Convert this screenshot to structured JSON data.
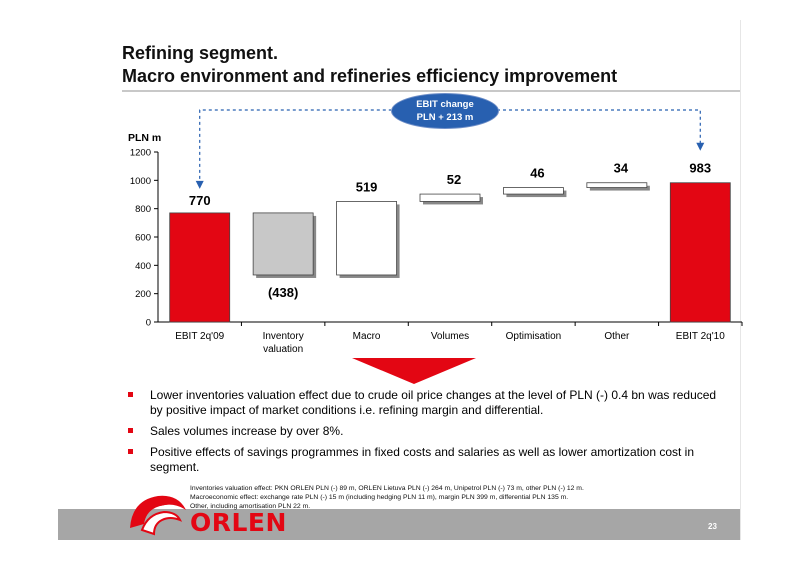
{
  "title": {
    "line1": "Refining segment.",
    "line2": "Macro environment and refineries efficiency improvement"
  },
  "callout": {
    "line1": "EBIT change",
    "line2": "PLN + 213 m"
  },
  "colors": {
    "accent_red": "#e30613",
    "grey_bar": "#c8c8c8",
    "callout_blue": "#2860b0",
    "footer_grey": "#a6a6a6"
  },
  "chart_data": {
    "type": "bar",
    "subtype": "waterfall",
    "ylabel": "PLN m",
    "ylim": [
      0,
      1200
    ],
    "yticks": [
      "0",
      "200",
      "400",
      "600",
      "800",
      "1000",
      "1200"
    ],
    "grid": false,
    "categories": [
      "EBIT 2q'09",
      "Inventory valuation",
      "Macro",
      "Volumes",
      "Optimisation",
      "Other",
      "EBIT 2q'10"
    ],
    "category_lines": [
      [
        "EBIT 2q'09"
      ],
      [
        "Inventory",
        "valuation"
      ],
      [
        "Macro"
      ],
      [
        "Volumes"
      ],
      [
        "Optimisation"
      ],
      [
        "Other"
      ],
      [
        "EBIT 2q'10"
      ]
    ],
    "bars": [
      {
        "category": "EBIT 2q'09",
        "kind": "total",
        "start": 0,
        "end": 770,
        "label": "770"
      },
      {
        "category": "Inventory valuation",
        "kind": "decrease",
        "start": 770,
        "end": 332,
        "label": "(438)"
      },
      {
        "category": "Macro",
        "kind": "increase",
        "start": 332,
        "end": 851,
        "label": "519"
      },
      {
        "category": "Volumes",
        "kind": "increase",
        "start": 851,
        "end": 903,
        "label": "52"
      },
      {
        "category": "Optimisation",
        "kind": "increase",
        "start": 903,
        "end": 949,
        "label": "46"
      },
      {
        "category": "Other",
        "kind": "increase",
        "start": 949,
        "end": 983,
        "label": "34"
      },
      {
        "category": "EBIT 2q'10",
        "kind": "total",
        "start": 0,
        "end": 983,
        "label": "983"
      }
    ]
  },
  "bullets": [
    "Lower inventories valuation effect due to crude oil price changes at the level of PLN (-) 0.4 bn was reduced by positive impact of market conditions i.e. refining margin and differential.",
    "Sales volumes increase by over 8%.",
    "Positive effects of savings programmes in fixed costs and salaries as well as lower amortization cost in segment."
  ],
  "footnotes": [
    "Inventories valuation effect: PKN ORLEN PLN (-) 89 m, ORLEN Lietuva PLN (-) 264 m, Unipetrol PLN (-) 73 m, other PLN (-) 12 m.",
    "Macroeconomic effect: exchange rate PLN (-) 15 m (including hedging PLN 11 m), margin PLN 399 m, differential PLN 135 m.",
    "Other, including amortisation PLN 22 m."
  ],
  "footer": {
    "logo_text": "ORLEN",
    "logo_icon": "orlen-eagle-logo",
    "page_number": "23"
  }
}
